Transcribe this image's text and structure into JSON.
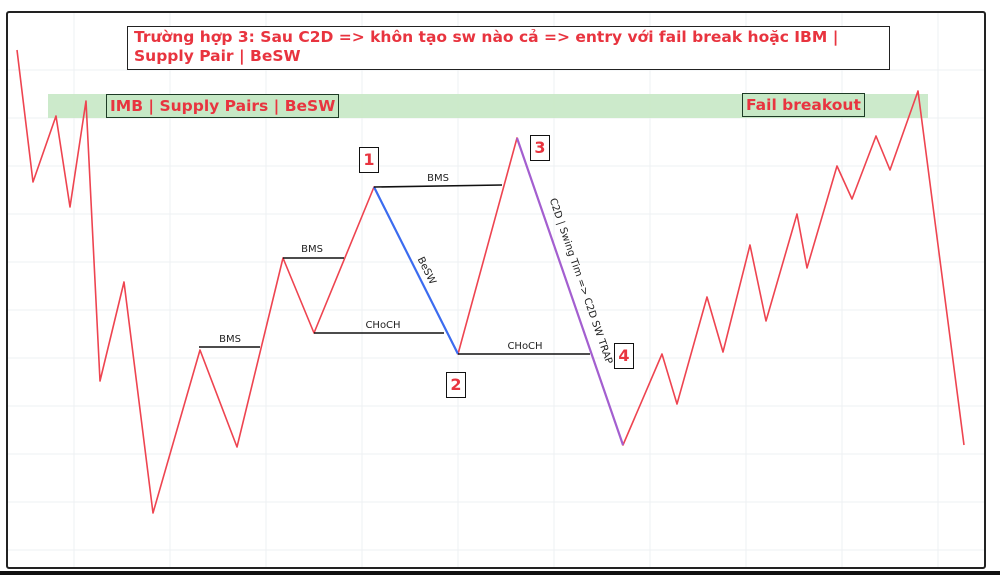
{
  "title": "Trường hợp 3: Sau C2D => khôn tạo sw nào cả => entry với fail break hoặc IBM | Supply Pair | BeSW",
  "zone_left_label": "IMB | Supply Pairs | BeSW",
  "zone_right_label": "Fail breakout",
  "points": {
    "p1": "1",
    "p2": "2",
    "p3": "3",
    "p4": "4"
  },
  "lines": {
    "bms_1": "BMS",
    "bms_2": "BMS",
    "bms_3": "BMS",
    "choch_1": "CHoCH",
    "choch_2": "CHoCH",
    "besw": "BeSW",
    "trap": "C2D | Swing Tim => C2D SW TRAP"
  },
  "colors": {
    "price_line": "#ee4450",
    "besw_leg": "#3b6cf0",
    "trap_leg": "#a35fd0",
    "zone": "#c6e8c5",
    "label_text": "#e8343f"
  }
}
